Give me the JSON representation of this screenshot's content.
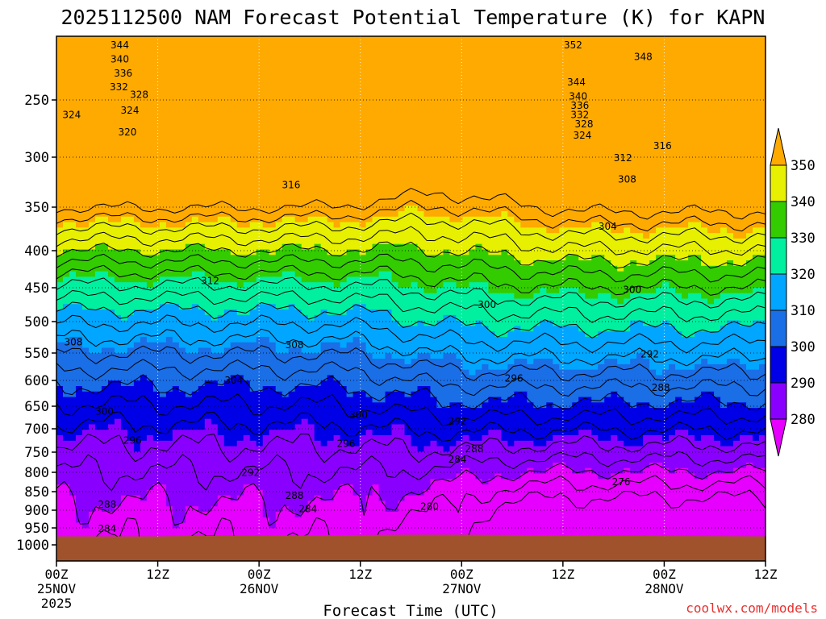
{
  "chart_data": {
    "type": "time-height-contour",
    "title": "2025112500 NAM Forecast Potential Temperature (K) for KAPN",
    "xlabel": "Forecast Time (UTC)",
    "ylabel": "",
    "credit": "coolwx.com/models",
    "y_axis": {
      "unit": "hPa",
      "range": [
        200,
        1000
      ],
      "ticks": [
        250,
        300,
        350,
        400,
        450,
        500,
        550,
        600,
        650,
        700,
        750,
        800,
        850,
        900,
        950,
        1000
      ]
    },
    "x_axis": {
      "range_hours": [
        0,
        84
      ],
      "ticks": [
        {
          "hour": 0,
          "top": "00Z",
          "mid": "25NOV",
          "bottom": "2025"
        },
        {
          "hour": 12,
          "top": "12Z",
          "mid": "",
          "bottom": ""
        },
        {
          "hour": 24,
          "top": "00Z",
          "mid": "26NOV",
          "bottom": ""
        },
        {
          "hour": 36,
          "top": "12Z",
          "mid": "",
          "bottom": ""
        },
        {
          "hour": 48,
          "top": "00Z",
          "mid": "27NOV",
          "bottom": ""
        },
        {
          "hour": 60,
          "top": "12Z",
          "mid": "",
          "bottom": ""
        },
        {
          "hour": 72,
          "top": "00Z",
          "mid": "28NOV",
          "bottom": ""
        },
        {
          "hour": 84,
          "top": "12Z",
          "mid": "",
          "bottom": ""
        }
      ]
    },
    "colorbar": {
      "levels": [
        280,
        290,
        300,
        310,
        320,
        330,
        340,
        350
      ],
      "colors": [
        "#8a00ff",
        "#0000e6",
        "#1a6ee6",
        "#00a6ff",
        "#00f0a0",
        "#33cc00",
        "#e6f000",
        "#ffaa00"
      ],
      "under_color": "#e600ff",
      "over_color": "#ffaa00"
    },
    "ground_color": "#a0522d",
    "contour_interval_K": 4,
    "surface_pressure_hPa": [
      975,
      975,
      975,
      973,
      973,
      972,
      971,
      970,
      970,
      971,
      972,
      973,
      974,
      975
    ],
    "surface_pressure_hours": [
      0,
      6,
      12,
      18,
      24,
      30,
      36,
      42,
      48,
      54,
      60,
      66,
      72,
      84
    ],
    "contour_labels": [
      {
        "value": "344",
        "hour": 7.5,
        "p": 207
      },
      {
        "value": "340",
        "hour": 7.5,
        "p": 218
      },
      {
        "value": "336",
        "hour": 7.9,
        "p": 229
      },
      {
        "value": "332",
        "hour": 7.4,
        "p": 240
      },
      {
        "value": "328",
        "hour": 9.8,
        "p": 246
      },
      {
        "value": "324",
        "hour": 1.8,
        "p": 263
      },
      {
        "value": "324",
        "hour": 8.7,
        "p": 259
      },
      {
        "value": "320",
        "hour": 8.4,
        "p": 278
      },
      {
        "value": "352",
        "hour": 61.2,
        "p": 207
      },
      {
        "value": "348",
        "hour": 69.5,
        "p": 216
      },
      {
        "value": "344",
        "hour": 61.6,
        "p": 236
      },
      {
        "value": "340",
        "hour": 61.8,
        "p": 247
      },
      {
        "value": "336",
        "hour": 62.0,
        "p": 255
      },
      {
        "value": "332",
        "hour": 62.0,
        "p": 263
      },
      {
        "value": "328",
        "hour": 62.5,
        "p": 271
      },
      {
        "value": "324",
        "hour": 62.3,
        "p": 281
      },
      {
        "value": "316",
        "hour": 71.8,
        "p": 290
      },
      {
        "value": "312",
        "hour": 67.1,
        "p": 301
      },
      {
        "value": "308",
        "hour": 67.6,
        "p": 322
      },
      {
        "value": "304",
        "hour": 65.3,
        "p": 372
      },
      {
        "value": "300",
        "hour": 68.2,
        "p": 453
      },
      {
        "value": "300",
        "hour": 51.0,
        "p": 475
      },
      {
        "value": "316",
        "hour": 27.8,
        "p": 328
      },
      {
        "value": "312",
        "hour": 18.2,
        "p": 441
      },
      {
        "value": "308",
        "hour": 2.0,
        "p": 533
      },
      {
        "value": "308",
        "hour": 28.2,
        "p": 537
      },
      {
        "value": "304",
        "hour": 21.0,
        "p": 600
      },
      {
        "value": "300",
        "hour": 5.7,
        "p": 662
      },
      {
        "value": "300",
        "hour": 35.8,
        "p": 670
      },
      {
        "value": "296",
        "hour": 9.0,
        "p": 725
      },
      {
        "value": "296",
        "hour": 34.3,
        "p": 732
      },
      {
        "value": "296",
        "hour": 54.2,
        "p": 596
      },
      {
        "value": "292",
        "hour": 47.5,
        "p": 683
      },
      {
        "value": "292",
        "hour": 70.3,
        "p": 552
      },
      {
        "value": "292",
        "hour": 23.0,
        "p": 801
      },
      {
        "value": "288",
        "hour": 71.6,
        "p": 614
      },
      {
        "value": "288",
        "hour": 49.5,
        "p": 743
      },
      {
        "value": "288",
        "hour": 28.2,
        "p": 861
      },
      {
        "value": "288",
        "hour": 6.0,
        "p": 885
      },
      {
        "value": "284",
        "hour": 47.5,
        "p": 768
      },
      {
        "value": "284",
        "hour": 29.8,
        "p": 897
      },
      {
        "value": "284",
        "hour": 6.0,
        "p": 952
      },
      {
        "value": "280",
        "hour": 44.2,
        "p": 890
      },
      {
        "value": "276",
        "hour": 66.9,
        "p": 825
      }
    ]
  }
}
